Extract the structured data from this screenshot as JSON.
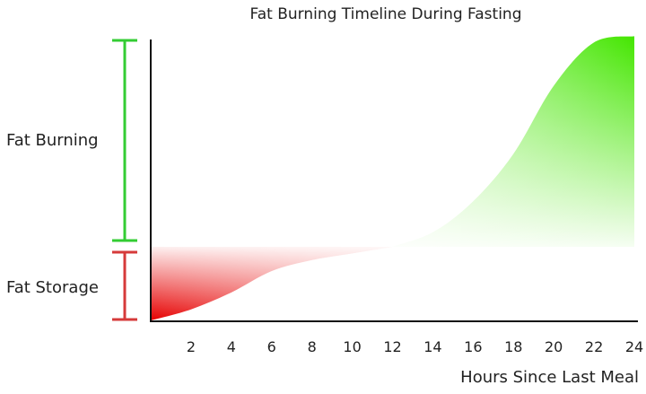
{
  "chart_data": {
    "type": "area",
    "title": "Fat Burning Timeline During Fasting",
    "xlabel": "Hours Since Last Meal",
    "ylabel": "",
    "xlim": [
      0,
      24
    ],
    "x_ticks": [
      "2",
      "4",
      "6",
      "8",
      "10",
      "12",
      "14",
      "16",
      "18",
      "20",
      "22",
      "24"
    ],
    "baseline_hour": 12,
    "zones": [
      {
        "name": "Fat Burning",
        "color": "#33cc33"
      },
      {
        "name": "Fat Storage",
        "color": "#d63a3a"
      }
    ],
    "series": [
      {
        "x": [
          0,
          2,
          4,
          6,
          8,
          10,
          12,
          14,
          16,
          18,
          20,
          22,
          24
        ],
        "y": [
          -1.0,
          -0.85,
          -0.62,
          -0.33,
          -0.18,
          -0.09,
          0.0,
          0.07,
          0.22,
          0.45,
          0.78,
          0.99,
          1.02
        ]
      }
    ],
    "colors": {
      "storage": "#e60000",
      "burning": "#44e600"
    },
    "grid": false,
    "legend": "none"
  }
}
